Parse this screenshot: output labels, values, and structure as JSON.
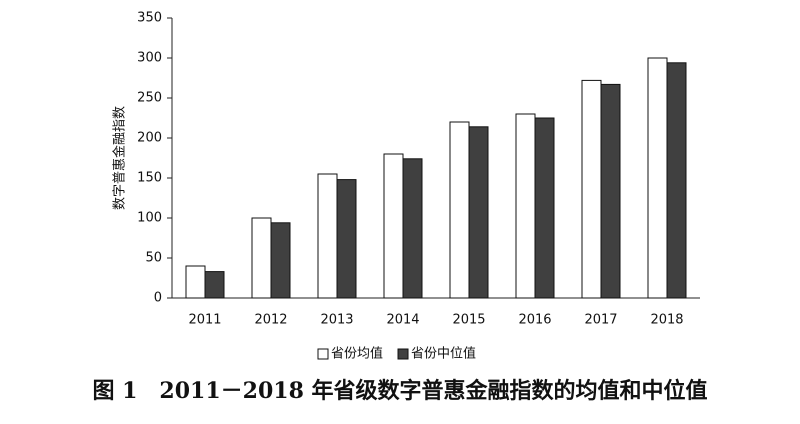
{
  "chart_data": {
    "type": "bar",
    "title": "图 1　2011－2018 年省级数字普惠金融指数的均值和中位值",
    "y_label": "数字普惠金融指数",
    "categories": [
      "2011",
      "2012",
      "2013",
      "2014",
      "2015",
      "2016",
      "2017",
      "2018"
    ],
    "series": [
      {
        "name": "省份均值",
        "color": "#ffffff",
        "values": [
          40,
          100,
          155,
          180,
          220,
          230,
          272,
          300
        ]
      },
      {
        "name": "省份中位值",
        "color": "#404040",
        "values": [
          33,
          94,
          148,
          174,
          214,
          225,
          267,
          294
        ]
      }
    ],
    "ylim": [
      0,
      350
    ],
    "yticks": [
      0,
      50,
      100,
      150,
      200,
      250,
      300,
      350
    ],
    "grid": false,
    "legend": "bottom"
  }
}
